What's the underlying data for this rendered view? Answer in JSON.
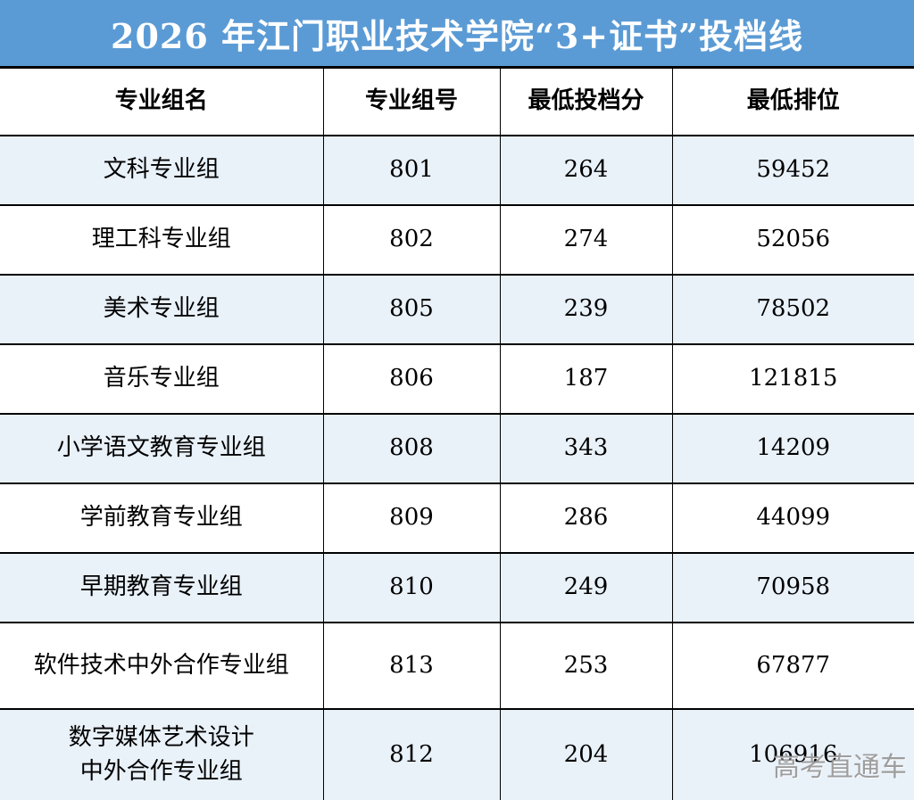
{
  "banner": {
    "title": "2026 年江门职业技术学院“3+证书”投档线",
    "bg_color": "#5B9BD5",
    "text_color": "#ffffff"
  },
  "table": {
    "stripe_color": "#E9F1F9",
    "headers": {
      "group_name": "专业组名",
      "group_no": "专业组号",
      "min_score": "最低投档分",
      "min_rank": "最低排位"
    },
    "rows": [
      {
        "name": "文科专业组",
        "no": "801",
        "score": "264",
        "rank": "59452"
      },
      {
        "name": "理工科专业组",
        "no": "802",
        "score": "274",
        "rank": "52056"
      },
      {
        "name": "美术专业组",
        "no": "805",
        "score": "239",
        "rank": "78502"
      },
      {
        "name": "音乐专业组",
        "no": "806",
        "score": "187",
        "rank": "121815"
      },
      {
        "name": "小学语文教育专业组",
        "no": "808",
        "score": "343",
        "rank": "14209"
      },
      {
        "name": "学前教育专业组",
        "no": "809",
        "score": "286",
        "rank": "44099"
      },
      {
        "name": "早期教育专业组",
        "no": "810",
        "score": "249",
        "rank": "70958"
      },
      {
        "name": "软件技术中外合作专业组",
        "no": "813",
        "score": "253",
        "rank": "67877"
      },
      {
        "name": "数字媒体艺术设计\n中外合作专业组",
        "no": "812",
        "score": "204",
        "rank": "106916"
      }
    ]
  },
  "watermark": {
    "text": "高考直通车",
    "color": "#969696"
  },
  "chart_data": {
    "type": "table",
    "title": "2026 年江门职业技术学院“3+证书”投档线",
    "columns": [
      "专业组名",
      "专业组号",
      "最低投档分",
      "最低排位"
    ],
    "rows": [
      [
        "文科专业组",
        801,
        264,
        59452
      ],
      [
        "理工科专业组",
        802,
        274,
        52056
      ],
      [
        "美术专业组",
        805,
        239,
        78502
      ],
      [
        "音乐专业组",
        806,
        187,
        121815
      ],
      [
        "小学语文教育专业组",
        808,
        343,
        14209
      ],
      [
        "学前教育专业组",
        809,
        286,
        44099
      ],
      [
        "早期教育专业组",
        810,
        249,
        70958
      ],
      [
        "软件技术中外合作专业组",
        813,
        253,
        67877
      ],
      [
        "数字媒体艺术设计中外合作专业组",
        812,
        204,
        106916
      ]
    ]
  }
}
